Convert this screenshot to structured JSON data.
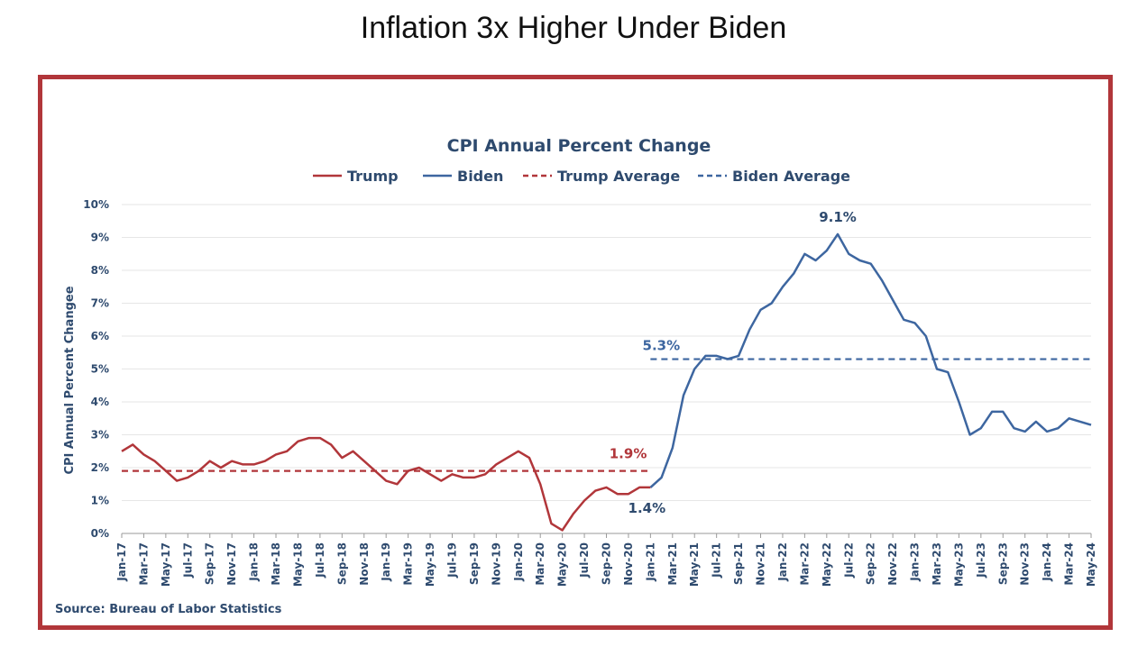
{
  "page_title": "Inflation 3x Higher Under Biden",
  "colors": {
    "trump": "#b1363a",
    "biden": "#3d66a0",
    "text": "#2e4a6e",
    "frame": "#b1363a",
    "grid": "#e6e6e6"
  },
  "chart_data": {
    "type": "line",
    "title": "CPI Annual Percent Change",
    "ylabel": "CPI Annual Percent Changee",
    "xlabel": "",
    "ylim": [
      0,
      10
    ],
    "y_ticks": [
      "0%",
      "1%",
      "2%",
      "3%",
      "4%",
      "5%",
      "6%",
      "7%",
      "8%",
      "9%",
      "10%"
    ],
    "x_tick_labels": [
      "Jan-17",
      "Mar-17",
      "May-17",
      "Jul-17",
      "Sep-17",
      "Nov-17",
      "Jan-18",
      "Mar-18",
      "May-18",
      "Jul-18",
      "Sep-18",
      "Nov-18",
      "Jan-19",
      "Mar-19",
      "May-19",
      "Jul-19",
      "Sep-19",
      "Nov-19",
      "Jan-20",
      "Mar-20",
      "May-20",
      "Jul-20",
      "Sep-20",
      "Nov-20",
      "Jan-21",
      "Mar-21",
      "May-21",
      "Jul-21",
      "Sep-21",
      "Nov-21",
      "Jan-22",
      "Mar-22",
      "May-22",
      "Jul-22",
      "Sep-22",
      "Nov-22",
      "Jan-23",
      "Mar-23",
      "May-23",
      "Jul-23",
      "Sep-23",
      "Nov-23",
      "Jan-24",
      "Mar-24",
      "May-24"
    ],
    "grid": true,
    "legend_position": "top-center",
    "legend": [
      "Trump",
      "Biden",
      "Trump Average",
      "Biden Average"
    ],
    "series": [
      {
        "name": "Trump",
        "start_month": "Jan-17",
        "values": [
          2.5,
          2.7,
          2.4,
          2.2,
          1.9,
          1.6,
          1.7,
          1.9,
          2.2,
          2.0,
          2.2,
          2.1,
          2.1,
          2.2,
          2.4,
          2.5,
          2.8,
          2.9,
          2.9,
          2.7,
          2.3,
          2.5,
          2.2,
          1.9,
          1.6,
          1.5,
          1.9,
          2.0,
          1.8,
          1.6,
          1.8,
          1.7,
          1.7,
          1.8,
          2.1,
          2.3,
          2.5,
          2.3,
          1.5,
          0.3,
          0.1,
          0.6,
          1.0,
          1.3,
          1.4,
          1.2,
          1.2,
          1.4,
          1.4
        ]
      },
      {
        "name": "Biden",
        "start_month": "Jan-21",
        "values": [
          1.4,
          1.7,
          2.6,
          4.2,
          5.0,
          5.4,
          5.4,
          5.3,
          5.4,
          6.2,
          6.8,
          7.0,
          7.5,
          7.9,
          8.5,
          8.3,
          8.6,
          9.1,
          8.5,
          8.3,
          8.2,
          7.7,
          7.1,
          6.5,
          6.4,
          6.0,
          5.0,
          4.9,
          4.0,
          3.0,
          3.2,
          3.7,
          3.7,
          3.2,
          3.1,
          3.4,
          3.1,
          3.2,
          3.5,
          3.4,
          3.3
        ]
      },
      {
        "name": "Trump Average",
        "value": 1.9,
        "from": "Jan-17",
        "to": "Jan-21"
      },
      {
        "name": "Biden Average",
        "value": 5.3,
        "from": "Jan-21",
        "to": "May-24"
      }
    ],
    "annotations": [
      {
        "text": "1.9%",
        "series": "Trump"
      },
      {
        "text": "1.4%",
        "series": "Biden"
      },
      {
        "text": "5.3%",
        "series": "Biden"
      },
      {
        "text": "9.1%",
        "series": "Biden"
      }
    ],
    "source": "Source: Bureau of Labor Statistics"
  }
}
